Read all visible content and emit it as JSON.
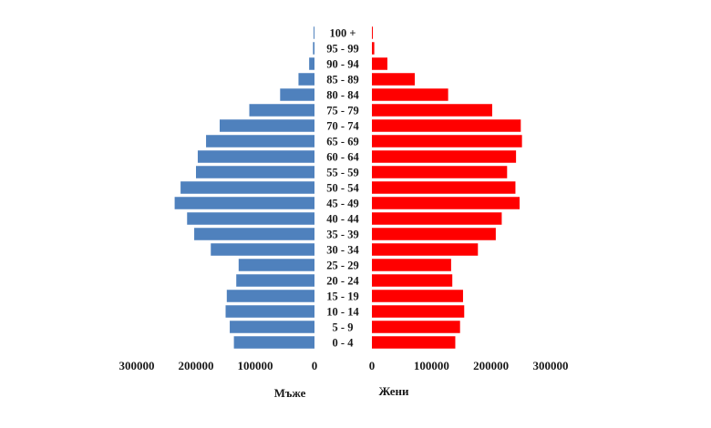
{
  "chart_data": {
    "type": "bar",
    "orientation": "horizontal-population-pyramid",
    "categories": [
      "0 - 4",
      "5 - 9",
      "10 - 14",
      "15 - 19",
      "20 - 24",
      "25 - 29",
      "30 - 34",
      "35 - 39",
      "40 - 44",
      "45 - 49",
      "50 - 54",
      "55 - 59",
      "60 - 64",
      "65 - 69",
      "70 - 74",
      "75 - 79",
      "80 - 84",
      "85 - 89",
      "90 - 94",
      "95 - 99",
      "100 +"
    ],
    "series": [
      {
        "name": "Мъже",
        "color": "#4f81bd",
        "values": [
          136000,
          143000,
          150000,
          148000,
          132000,
          128000,
          175000,
          203000,
          215000,
          236000,
          226000,
          200000,
          197000,
          183000,
          160000,
          110000,
          58000,
          27000,
          9000,
          2500,
          1500
        ]
      },
      {
        "name": "Жени",
        "color": "#ff0000",
        "values": [
          140000,
          148000,
          155000,
          153000,
          135000,
          133000,
          178000,
          208000,
          218000,
          248000,
          241000,
          227000,
          242000,
          252000,
          250000,
          202000,
          128000,
          72000,
          26000,
          4000,
          1500
        ]
      }
    ],
    "xlim": [
      0,
      300000
    ],
    "ticks": {
      "left": [
        "300000",
        "200000",
        "100000",
        "0"
      ],
      "right": [
        "0",
        "100000",
        "200000",
        "300000"
      ]
    },
    "xlabel_left": "Мъже",
    "xlabel_right": "Жени",
    "grid": false,
    "legend": "none"
  }
}
